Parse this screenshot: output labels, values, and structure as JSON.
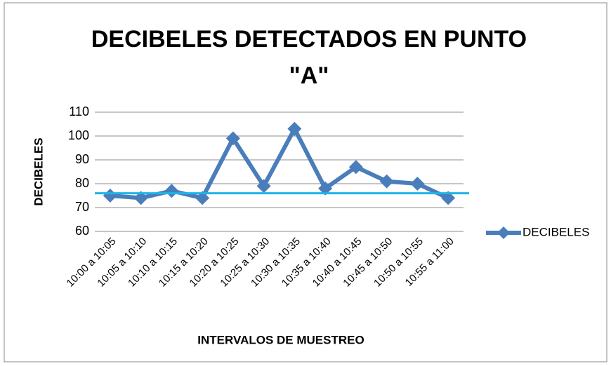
{
  "chart_data": {
    "type": "line",
    "title": "DECIBELES DETECTADOS EN PUNTO\n\"A\"",
    "x_label": "INTERVALOS DE MUESTREO",
    "y_label": "DECIBELES",
    "categories": [
      "10:00 a 10:05",
      "10:05 a 10:10",
      "10:10 a 10:15",
      "10:15 a 10:20",
      "10:20 a 10:25",
      "10:25 a 10:30",
      "10:30 a 10:35",
      "10:35 a 10:40",
      "10:40 a 10:45",
      "10:45 a 10:50",
      "10:50 a 10:55",
      "10:55 a 11:00"
    ],
    "series": [
      {
        "name": "DECIBELES",
        "color": "#4a7ebb",
        "values": [
          75,
          74,
          77,
          74,
          99,
          79,
          103,
          78,
          87,
          81,
          80,
          74
        ]
      }
    ],
    "reference_line": {
      "value": 76,
      "color": "#1fb4e8"
    },
    "ylim": [
      60,
      110
    ],
    "yticks": [
      60,
      70,
      80,
      90,
      100,
      110
    ],
    "grid": true,
    "legend": "right"
  }
}
